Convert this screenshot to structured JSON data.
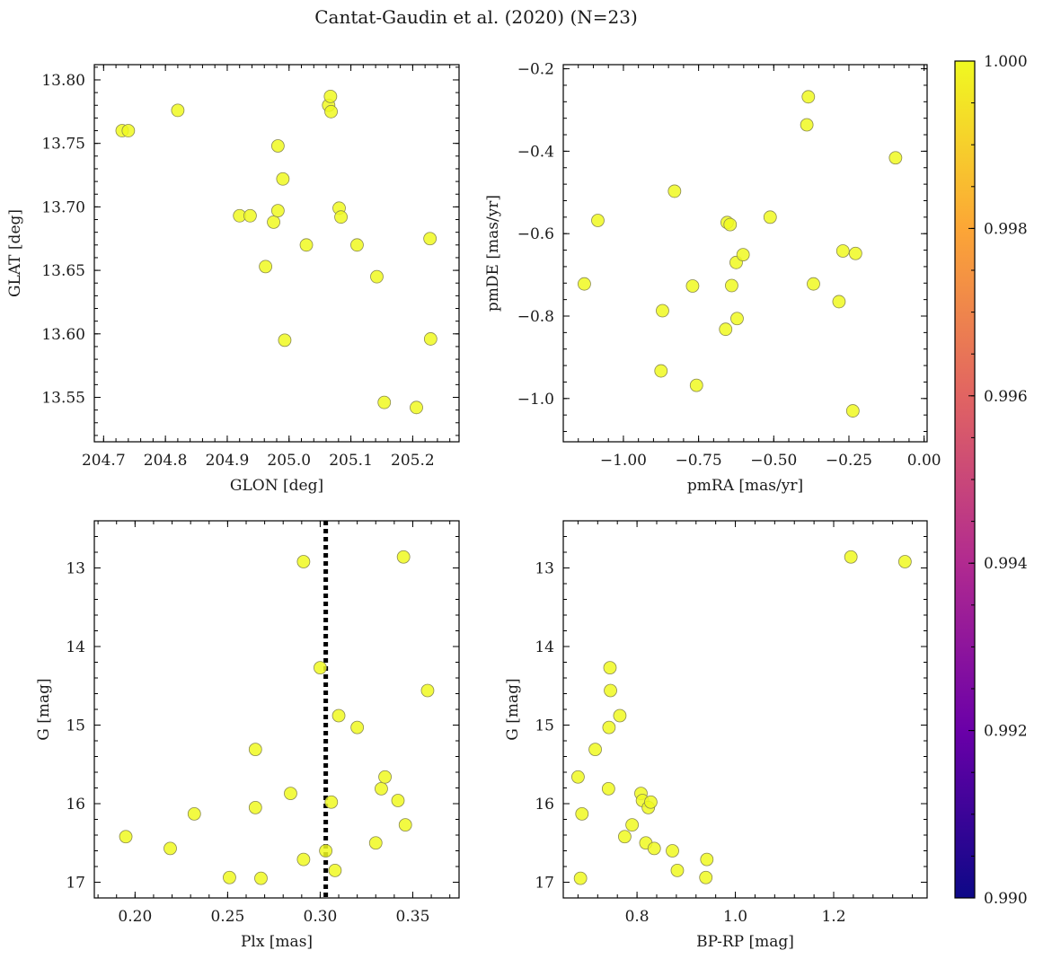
{
  "title": "Cantat-Gaudin et al. (2020) (N=23)",
  "colors": {
    "marker_fill": "#f0f921",
    "marker_edge": "#8a8a50",
    "vline": "#000000",
    "colormap": [
      "#0d0887",
      "#6a00a8",
      "#b12a90",
      "#e16462",
      "#fca636",
      "#f0f921"
    ]
  },
  "colorbar": {
    "min": 0.99,
    "max": 1.0,
    "ticks": [
      "0.990",
      "0.992",
      "0.994",
      "0.996",
      "0.998",
      "1.000"
    ],
    "tick_values": [
      0.99,
      0.992,
      0.994,
      0.996,
      0.998,
      1.0
    ]
  },
  "chart_data": [
    {
      "type": "scatter",
      "xlabel": "GLON [deg]",
      "ylabel": "GLAT [deg]",
      "xlim": [
        204.685,
        205.275
      ],
      "ylim": [
        13.515,
        13.812
      ],
      "xticks": [
        204.7,
        204.8,
        204.9,
        205.0,
        205.1,
        205.2
      ],
      "xtick_labels": [
        "204.7",
        "204.8",
        "204.9",
        "205.0",
        "205.1",
        "205.2"
      ],
      "yticks": [
        13.55,
        13.6,
        13.65,
        13.7,
        13.75,
        13.8
      ],
      "ytick_labels": [
        "13.55",
        "13.60",
        "13.65",
        "13.70",
        "13.75",
        "13.80"
      ],
      "x": [
        204.73,
        204.74,
        204.82,
        204.92,
        204.937,
        204.962,
        204.975,
        204.982,
        204.982,
        204.99,
        204.993,
        205.028,
        205.064,
        205.067,
        205.068,
        205.081,
        205.084,
        205.11,
        205.142,
        205.154,
        205.206,
        205.228,
        205.229
      ],
      "y": [
        13.76,
        13.76,
        13.776,
        13.693,
        13.693,
        13.653,
        13.688,
        13.748,
        13.697,
        13.722,
        13.595,
        13.67,
        13.78,
        13.787,
        13.775,
        13.699,
        13.692,
        13.67,
        13.645,
        13.546,
        13.542,
        13.675,
        13.596
      ]
    },
    {
      "type": "scatter",
      "xlabel": "pmRA [mas/yr]",
      "ylabel": "pmDE [mas/yr]",
      "xlim": [
        -1.2,
        0.01
      ],
      "ylim": [
        -1.105,
        -0.19
      ],
      "xticks": [
        -1.0,
        -0.75,
        -0.5,
        -0.25,
        0.0
      ],
      "xtick_labels": [
        "−1.00",
        "−0.75",
        "−0.50",
        "−0.25",
        "0.00"
      ],
      "yticks": [
        -1.0,
        -0.8,
        -0.6,
        -0.4,
        -0.2
      ],
      "ytick_labels": [
        "−1.0",
        "−0.8",
        "−0.6",
        "−0.4",
        "−0.2"
      ],
      "x": [
        -1.13,
        -1.085,
        -0.875,
        -0.87,
        -0.83,
        -0.77,
        -0.757,
        -0.66,
        -0.655,
        -0.645,
        -0.64,
        -0.625,
        -0.622,
        -0.602,
        -0.512,
        -0.39,
        -0.385,
        -0.368,
        -0.283,
        -0.27,
        -0.237,
        -0.228,
        -0.095
      ],
      "y": [
        -0.722,
        -0.568,
        -0.933,
        -0.787,
        -0.497,
        -0.727,
        -0.968,
        -0.832,
        -0.573,
        -0.578,
        -0.726,
        -0.67,
        -0.806,
        -0.651,
        -0.56,
        -0.336,
        -0.268,
        -0.722,
        -0.765,
        -0.642,
        -1.03,
        -0.648,
        -0.416
      ]
    },
    {
      "type": "scatter",
      "xlabel": "Plx [mas]",
      "ylabel": "G [mag]",
      "xlim": [
        0.178,
        0.375
      ],
      "ylim": [
        17.2,
        12.4
      ],
      "y_inverted": true,
      "xticks": [
        0.2,
        0.25,
        0.3,
        0.35
      ],
      "xtick_labels": [
        "0.20",
        "0.25",
        "0.30",
        "0.35"
      ],
      "yticks": [
        13,
        14,
        15,
        16,
        17
      ],
      "ytick_labels": [
        "13",
        "14",
        "15",
        "16",
        "17"
      ],
      "vline_x": 0.303,
      "x": [
        0.195,
        0.219,
        0.232,
        0.251,
        0.265,
        0.265,
        0.268,
        0.284,
        0.291,
        0.291,
        0.3,
        0.303,
        0.306,
        0.308,
        0.31,
        0.32,
        0.33,
        0.333,
        0.335,
        0.342,
        0.345,
        0.346,
        0.358
      ],
      "y": [
        16.42,
        16.57,
        16.13,
        16.94,
        15.31,
        16.05,
        16.95,
        15.87,
        12.92,
        16.71,
        14.27,
        16.6,
        15.98,
        16.85,
        14.88,
        15.03,
        16.5,
        15.81,
        15.66,
        15.96,
        12.86,
        16.27,
        14.56
      ]
    },
    {
      "type": "scatter",
      "xlabel": "BP-RP [mag]",
      "ylabel": "G [mag]",
      "xlim": [
        0.65,
        1.39
      ],
      "ylim": [
        17.2,
        12.4
      ],
      "y_inverted": true,
      "xticks": [
        0.8,
        1.0,
        1.2
      ],
      "xtick_labels": [
        "0.8",
        "1.0",
        "1.2"
      ],
      "yticks": [
        13,
        14,
        15,
        16,
        17
      ],
      "ytick_labels": [
        "13",
        "14",
        "15",
        "16",
        "17"
      ],
      "x": [
        0.68,
        0.685,
        0.688,
        0.715,
        0.742,
        0.743,
        0.745,
        0.746,
        0.765,
        0.775,
        0.79,
        0.808,
        0.811,
        0.818,
        0.823,
        0.828,
        0.835,
        0.872,
        0.882,
        0.94,
        0.942,
        1.235,
        1.345
      ],
      "y": [
        15.66,
        16.95,
        16.13,
        15.31,
        15.81,
        15.03,
        14.27,
        14.56,
        14.88,
        16.42,
        16.27,
        15.87,
        15.96,
        16.5,
        16.05,
        15.98,
        16.57,
        16.6,
        16.85,
        16.94,
        16.71,
        12.86,
        12.92
      ]
    }
  ]
}
